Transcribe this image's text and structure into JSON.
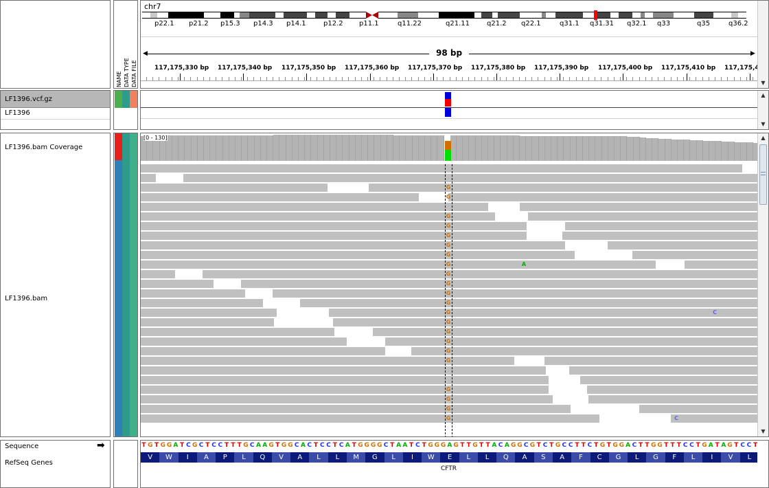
{
  "header": {
    "chromosome": "chr7",
    "span_label": "98 bp",
    "cytobands": [
      "p22.1",
      "p21.2",
      "p15.3",
      "p14.3",
      "p14.1",
      "p12.2",
      "p11.1",
      "q11.22",
      "q21.11",
      "q21.2",
      "q22.1",
      "q31.1",
      "q31.31",
      "q32.1",
      "q33",
      "q35",
      "q36.2"
    ],
    "ruler_ticks": [
      "117,175,330 bp",
      "117,175,340 bp",
      "117,175,350 bp",
      "117,175,360 bp",
      "117,175,370 bp",
      "117,175,380 bp",
      "117,175,390 bp",
      "117,175,400 bp",
      "117,175,410 bp",
      "117,175,4"
    ]
  },
  "attribute_headers": [
    "NAME",
    "DATA TYPE",
    "DATA FILE"
  ],
  "variant_panel": {
    "tracks": [
      "LF1396.vcf.gz",
      "LF1396"
    ]
  },
  "alignment_panel": {
    "coverage_track": "LF1396.bam Coverage",
    "coverage_range": "[0 - 130]",
    "alignment_track": "LF1396.bam",
    "mismatch_base": "G",
    "other_mismatches": [
      "A",
      "C",
      "C",
      "C"
    ]
  },
  "feature_panel": {
    "sequence_label": "Sequence",
    "sequence": "TGTGGATCGCTCCTTTGCAAGTGGCACTCCTCATGGGGCTAATCTGGGAGTTGTTACAGGCGTCTGCCTTCTGTGGACTTGGTTTCCTGATAGTCCT",
    "genes_label": "RefSeq Genes",
    "amino_acids": [
      "V",
      "W",
      "I",
      "A",
      "P",
      "L",
      "Q",
      "V",
      "A",
      "L",
      "L",
      "M",
      "G",
      "L",
      "I",
      "W",
      "E",
      "L",
      "L",
      "Q",
      "A",
      "S",
      "A",
      "F",
      "C",
      "G",
      "L",
      "G",
      "F",
      "L",
      "I",
      "V",
      "L"
    ],
    "gene_name": "CFTR"
  },
  "colors": {
    "name_attr_variant": "#4cae4c",
    "type_attr_variant": "#2f9b8b",
    "file_attr_variant": "#f08060",
    "name_attr_bam": "#2f7fb8",
    "type_attr_bam": "#2f9b8b",
    "file_attr_bam": "#3fb08a",
    "attr_red": "#e8201c",
    "variant_blue": "#0000dd",
    "variant_red": "#ee0000",
    "amino_dark": "#0c1b7a",
    "amino_light": "#3a4ca8"
  }
}
